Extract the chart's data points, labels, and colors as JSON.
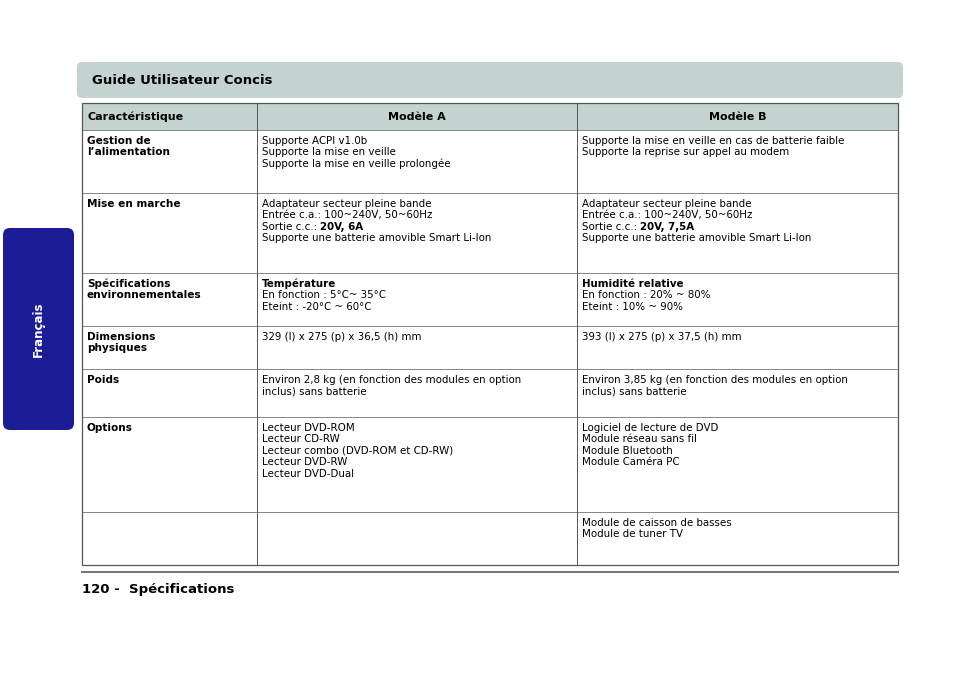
{
  "title_box_text": "Guide Utilisateur Concis",
  "title_box_bg": "#c5d3d0",
  "header_bg": "#c5d3d0",
  "col_headers": [
    "Caractéristique",
    "Modèle A",
    "Modèle B"
  ],
  "sidebar_text": "Français",
  "sidebar_bg": "#1c1c96",
  "sidebar_text_color": "#ffffff",
  "bottom_text": "120 -  Spécifications",
  "table_border_color": "#555555",
  "rows": [
    {
      "feature": "Gestion de\nl’alimentation",
      "model_a_lines": [
        {
          "text": "Supporte ACPI v1.0b",
          "bold": false
        },
        {
          "text": "Supporte la mise en veille",
          "bold": false
        },
        {
          "text": "Supporte la mise en veille prolongée",
          "bold": false
        }
      ],
      "model_b_lines": [
        {
          "text": "Supporte la mise en veille en cas de batterie faible",
          "bold": false
        },
        {
          "text": "Supporte la reprise sur appel au modem",
          "bold": false
        }
      ]
    },
    {
      "feature": "Mise en marche",
      "model_a_lines": [
        {
          "text": "Adaptateur secteur pleine bande",
          "bold": false
        },
        {
          "text": "Entrée c.a.: 100~240V, 50~60Hz",
          "bold": false
        },
        {
          "text": "Sortie c.c.: ",
          "bold": false,
          "bold_suffix": "20V, 6A"
        },
        {
          "text": "Supporte une batterie amovible Smart Li-Ion",
          "bold": false
        }
      ],
      "model_b_lines": [
        {
          "text": "Adaptateur secteur pleine bande",
          "bold": false
        },
        {
          "text": "Entrée c.a.: 100~240V, 50~60Hz",
          "bold": false
        },
        {
          "text": "Sortie c.c.: ",
          "bold": false,
          "bold_suffix": "20V, 7,5A"
        },
        {
          "text": "Supporte une batterie amovible Smart Li-Ion",
          "bold": false
        }
      ]
    },
    {
      "feature": "Spécifications\nenvironnementales",
      "model_a_lines": [
        {
          "text": "Température",
          "bold": true
        },
        {
          "text": "En fonction : 5°C~ 35°C",
          "bold": false
        },
        {
          "text": "Eteint : -20°C ~ 60°C",
          "bold": false
        }
      ],
      "model_b_lines": [
        {
          "text": "Humidité relative",
          "bold": true
        },
        {
          "text": "En fonction : 20% ~ 80%",
          "bold": false
        },
        {
          "text": "Eteint : 10% ~ 90%",
          "bold": false
        }
      ]
    },
    {
      "feature": "Dimensions\nphysiques",
      "model_a_lines": [
        {
          "text": "329 (l) x 275 (p) x 36,5 (h) mm",
          "bold": false
        }
      ],
      "model_b_lines": [
        {
          "text": "393 (l) x 275 (p) x 37,5 (h) mm",
          "bold": false
        }
      ]
    },
    {
      "feature": "Poids",
      "model_a_lines": [
        {
          "text": "Environ 2,8 kg (en fonction des modules en option",
          "bold": false
        },
        {
          "text": "inclus) sans batterie",
          "bold": false
        }
      ],
      "model_b_lines": [
        {
          "text": "Environ 3,85 kg (en fonction des modules en option",
          "bold": false
        },
        {
          "text": "inclus) sans batterie",
          "bold": false
        }
      ]
    },
    {
      "feature": "Options",
      "model_a_lines": [
        {
          "text": "Lecteur DVD-ROM",
          "bold": false
        },
        {
          "text": "Lecteur CD-RW",
          "bold": false
        },
        {
          "text": "Lecteur combo (DVD-ROM et CD-RW)",
          "bold": false
        },
        {
          "text": "Lecteur DVD-RW",
          "bold": false
        },
        {
          "text": "Lecteur DVD-Dual",
          "bold": false
        }
      ],
      "model_b_lines": [
        {
          "text": "Logiciel de lecture de DVD",
          "bold": false
        },
        {
          "text": "Module réseau sans fil",
          "bold": false
        },
        {
          "text": "Module Bluetooth",
          "bold": false
        },
        {
          "text": "Module Caméra PC",
          "bold": false
        }
      ]
    },
    {
      "feature": "",
      "model_a_lines": [],
      "model_b_lines": [
        {
          "text": "Module de caisson de basses",
          "bold": false
        },
        {
          "text": "Module de tuner TV",
          "bold": false
        }
      ]
    }
  ],
  "bg_color": "#ffffff",
  "fig_w": 9.54,
  "fig_h": 6.73,
  "dpi": 100
}
